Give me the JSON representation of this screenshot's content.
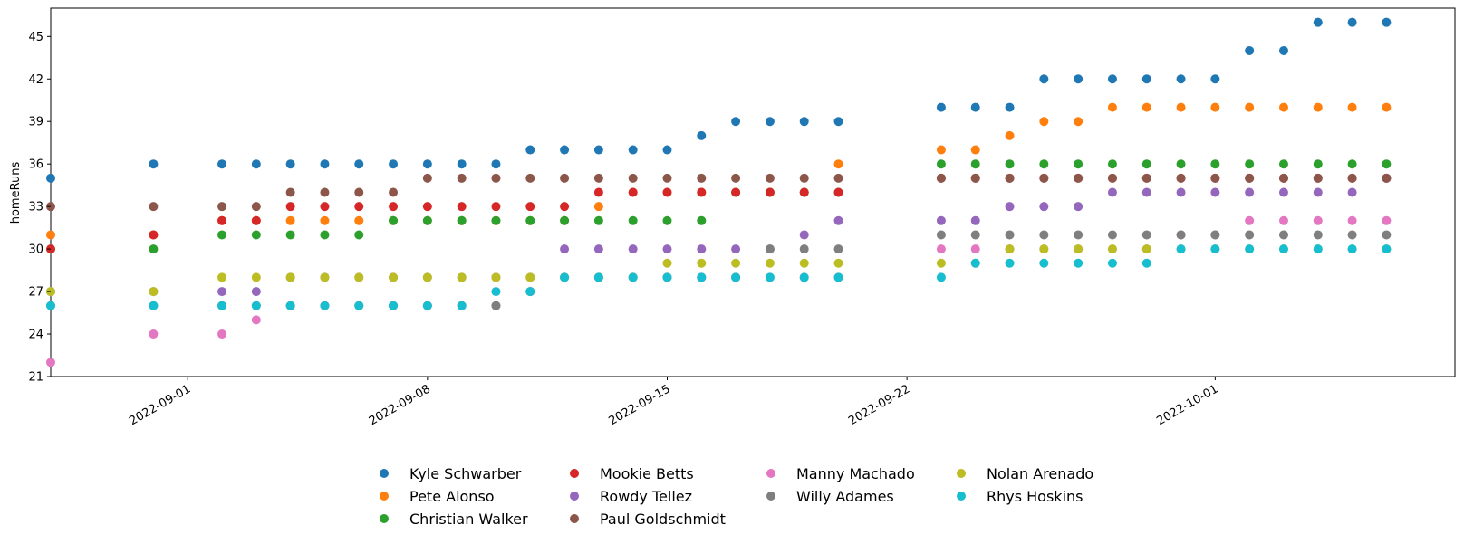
{
  "chart_data": {
    "type": "scatter",
    "title": "",
    "xlabel": "",
    "ylabel": "homeRuns",
    "ylim": [
      21,
      47
    ],
    "xlim": [
      "2022-08-28",
      "2022-10-08"
    ],
    "yticks": [
      21,
      24,
      27,
      30,
      33,
      36,
      39,
      42,
      45
    ],
    "xticks": [
      "2022-09-01",
      "2022-09-08",
      "2022-09-15",
      "2022-09-22",
      "2022-10-01"
    ],
    "grid": false,
    "legend_position": "bottom-center",
    "dates": [
      "2022-08-28",
      "2022-08-31",
      "2022-09-02",
      "2022-09-03",
      "2022-09-04",
      "2022-09-05",
      "2022-09-06",
      "2022-09-07",
      "2022-09-08",
      "2022-09-09",
      "2022-09-10",
      "2022-09-11",
      "2022-09-12",
      "2022-09-13",
      "2022-09-14",
      "2022-09-15",
      "2022-09-16",
      "2022-09-17",
      "2022-09-18",
      "2022-09-19",
      "2022-09-20",
      "2022-09-23",
      "2022-09-24",
      "2022-09-25",
      "2022-09-26",
      "2022-09-27",
      "2022-09-28",
      "2022-09-29",
      "2022-09-30",
      "2022-10-01",
      "2022-10-02",
      "2022-10-03",
      "2022-10-04",
      "2022-10-05",
      "2022-10-06"
    ],
    "series": [
      {
        "name": "Kyle Schwarber",
        "color": "#1f77b4",
        "values": [
          35,
          36,
          36,
          36,
          36,
          36,
          36,
          36,
          36,
          36,
          36,
          37,
          37,
          37,
          37,
          37,
          38,
          39,
          39,
          39,
          39,
          40,
          40,
          40,
          42,
          42,
          42,
          42,
          42,
          42,
          44,
          44,
          46,
          46,
          46
        ]
      },
      {
        "name": "Pete Alonso",
        "color": "#ff7f0e",
        "values": [
          31,
          31,
          32,
          32,
          32,
          32,
          32,
          32,
          32,
          32,
          32,
          32,
          32,
          33,
          34,
          34,
          34,
          34,
          34,
          34,
          36,
          37,
          37,
          38,
          39,
          39,
          40,
          40,
          40,
          40,
          40,
          40,
          40,
          40,
          40
        ]
      },
      {
        "name": "Christian Walker",
        "color": "#2ca02c",
        "values": [
          30,
          30,
          31,
          31,
          31,
          31,
          31,
          32,
          32,
          32,
          32,
          32,
          32,
          32,
          32,
          32,
          32,
          34,
          34,
          34,
          34,
          36,
          36,
          36,
          36,
          36,
          36,
          36,
          36,
          36,
          36,
          36,
          36,
          36,
          36
        ]
      },
      {
        "name": "Mookie Betts",
        "color": "#d62728",
        "values": [
          30,
          31,
          32,
          32,
          33,
          33,
          33,
          33,
          33,
          33,
          33,
          33,
          33,
          34,
          34,
          34,
          34,
          34,
          34,
          34,
          34,
          35,
          35,
          35,
          35,
          35,
          35,
          35,
          35,
          35,
          35,
          35,
          35,
          35,
          35
        ]
      },
      {
        "name": "Rowdy Tellez",
        "color": "#9467bd",
        "values": [
          27,
          27,
          27,
          27,
          28,
          28,
          28,
          28,
          28,
          28,
          28,
          28,
          30,
          30,
          30,
          30,
          30,
          30,
          30,
          31,
          32,
          32,
          32,
          33,
          33,
          33,
          34,
          34,
          34,
          34,
          34,
          34,
          34,
          34,
          35
        ]
      },
      {
        "name": "Paul Goldschmidt",
        "color": "#8c564b",
        "values": [
          33,
          33,
          33,
          33,
          34,
          34,
          34,
          34,
          35,
          35,
          35,
          35,
          35,
          35,
          35,
          35,
          35,
          35,
          35,
          35,
          35,
          35,
          35,
          35,
          35,
          35,
          35,
          35,
          35,
          35,
          35,
          35,
          35,
          35,
          35
        ]
      },
      {
        "name": "Manny Machado",
        "color": "#e377c2",
        "values": [
          22,
          24,
          24,
          25,
          26,
          26,
          26,
          26,
          26,
          26,
          26,
          27,
          28,
          28,
          28,
          28,
          28,
          28,
          28,
          28,
          28,
          30,
          30,
          30,
          30,
          30,
          30,
          30,
          31,
          31,
          32,
          32,
          32,
          32,
          32
        ]
      },
      {
        "name": "Willy Adames",
        "color": "#7f7f7f",
        "values": [
          26,
          26,
          26,
          26,
          26,
          26,
          26,
          26,
          26,
          26,
          26,
          27,
          28,
          28,
          28,
          28,
          28,
          28,
          30,
          30,
          30,
          31,
          31,
          31,
          31,
          31,
          31,
          31,
          31,
          31,
          31,
          31,
          31,
          31,
          31
        ]
      },
      {
        "name": "Nolan Arenado",
        "color": "#bcbd22",
        "values": [
          27,
          27,
          28,
          28,
          28,
          28,
          28,
          28,
          28,
          28,
          28,
          28,
          28,
          28,
          28,
          29,
          29,
          29,
          29,
          29,
          29,
          29,
          29,
          30,
          30,
          30,
          30,
          30,
          30,
          30,
          30,
          30,
          30,
          30,
          30
        ]
      },
      {
        "name": "Rhys Hoskins",
        "color": "#17becf",
        "values": [
          26,
          26,
          26,
          26,
          26,
          26,
          26,
          26,
          26,
          26,
          27,
          27,
          28,
          28,
          28,
          28,
          28,
          28,
          28,
          28,
          28,
          28,
          29,
          29,
          29,
          29,
          29,
          29,
          30,
          30,
          30,
          30,
          30,
          30,
          30
        ]
      }
    ]
  }
}
